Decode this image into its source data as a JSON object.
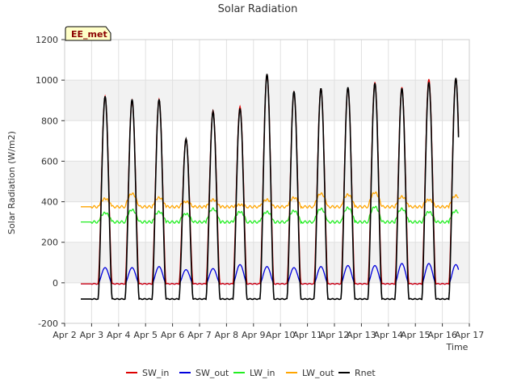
{
  "chart_data": {
    "type": "line",
    "title": "Solar Radiation",
    "xlabel": "Time",
    "ylabel": "Solar Radiation (W/m2)",
    "annotation": "EE_met",
    "ylim": [
      -200,
      1200
    ],
    "yticks": [
      -200,
      0,
      200,
      400,
      600,
      800,
      1000,
      1200
    ],
    "xlim": [
      2,
      17
    ],
    "xtick_values": [
      2,
      3,
      4,
      5,
      6,
      7,
      8,
      9,
      10,
      11,
      12,
      13,
      14,
      15,
      16,
      17
    ],
    "xtick_labels": [
      "Apr 2",
      "Apr 3",
      "Apr 4",
      "Apr 5",
      "Apr 6",
      "Apr 7",
      "Apr 8",
      "Apr 9",
      "Apr 10",
      "Apr 11",
      "Apr 12",
      "Apr 13",
      "Apr 14",
      "Apr 15",
      "Apr 16",
      "Apr 17"
    ],
    "grid": true,
    "legend_position": "bottom",
    "x_unit": "day of April",
    "days": [
      3,
      4,
      5,
      6,
      7,
      8,
      9,
      10,
      11,
      12,
      13,
      14,
      15,
      16
    ],
    "daily_peaks": {
      "SW_in": [
        920,
        900,
        905,
        710,
        850,
        870,
        1030,
        940,
        960,
        960,
        990,
        965,
        1005,
        1010
      ],
      "SW_out": [
        75,
        75,
        80,
        65,
        70,
        90,
        80,
        75,
        80,
        85,
        85,
        95,
        95,
        90
      ],
      "LW_in": [
        345,
        360,
        350,
        340,
        365,
        350,
        350,
        355,
        365,
        370,
        375,
        365,
        350,
        355
      ],
      "LW_out": [
        415,
        440,
        420,
        400,
        410,
        385,
        410,
        420,
        440,
        435,
        445,
        425,
        410,
        430
      ],
      "Rnet": [
        920,
        905,
        905,
        710,
        845,
        860,
        1030,
        945,
        960,
        965,
        985,
        960,
        990,
        1010
      ]
    },
    "night_levels": {
      "SW_in": -5,
      "SW_out": -5,
      "LW_in": 300,
      "LW_out": 375,
      "Rnet": -80
    },
    "series": [
      {
        "name": "SW_in",
        "color": "#dd0000"
      },
      {
        "name": "SW_out",
        "color": "#0000dd"
      },
      {
        "name": "LW_in",
        "color": "#22ee22"
      },
      {
        "name": "LW_out",
        "color": "#ffa500"
      },
      {
        "name": "Rnet",
        "color": "#000000"
      }
    ]
  }
}
